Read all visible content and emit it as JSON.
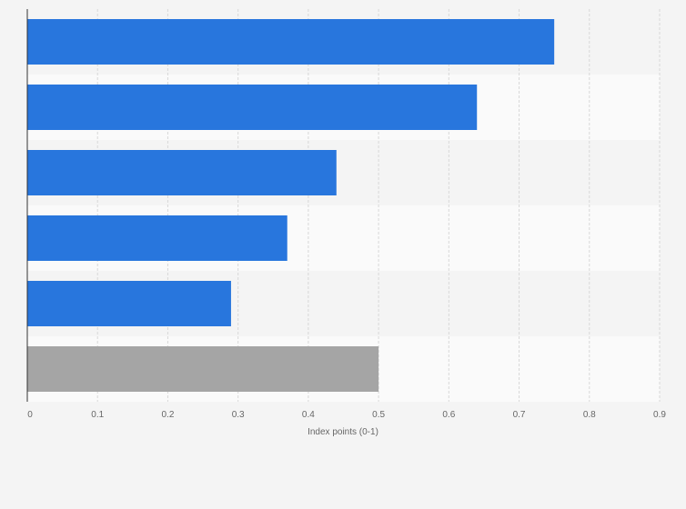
{
  "chart_data": {
    "type": "bar",
    "orientation": "horizontal",
    "categories": [
      "",
      "",
      "",
      "",
      "",
      ""
    ],
    "values": [
      0.75,
      0.64,
      0.44,
      0.37,
      0.29,
      0.5
    ],
    "bar_colors": [
      "#2876dd",
      "#2876dd",
      "#2876dd",
      "#2876dd",
      "#2876dd",
      "#a5a5a5"
    ],
    "xlabel": "Index points (0-1)",
    "ylabel": "",
    "xlim": [
      0,
      0.9
    ],
    "xticks": [
      "0",
      "0.1",
      "0.2",
      "0.3",
      "0.4",
      "0.5",
      "0.6",
      "0.7",
      "0.8",
      "0.9"
    ],
    "grid": "vertical dashed",
    "legend": "none"
  },
  "colors": {
    "background": "#f4f4f4",
    "band_light": "#fafafa",
    "band_dark": "#f4f4f4",
    "grid": "#d8d8d8",
    "axis": "#333333"
  }
}
